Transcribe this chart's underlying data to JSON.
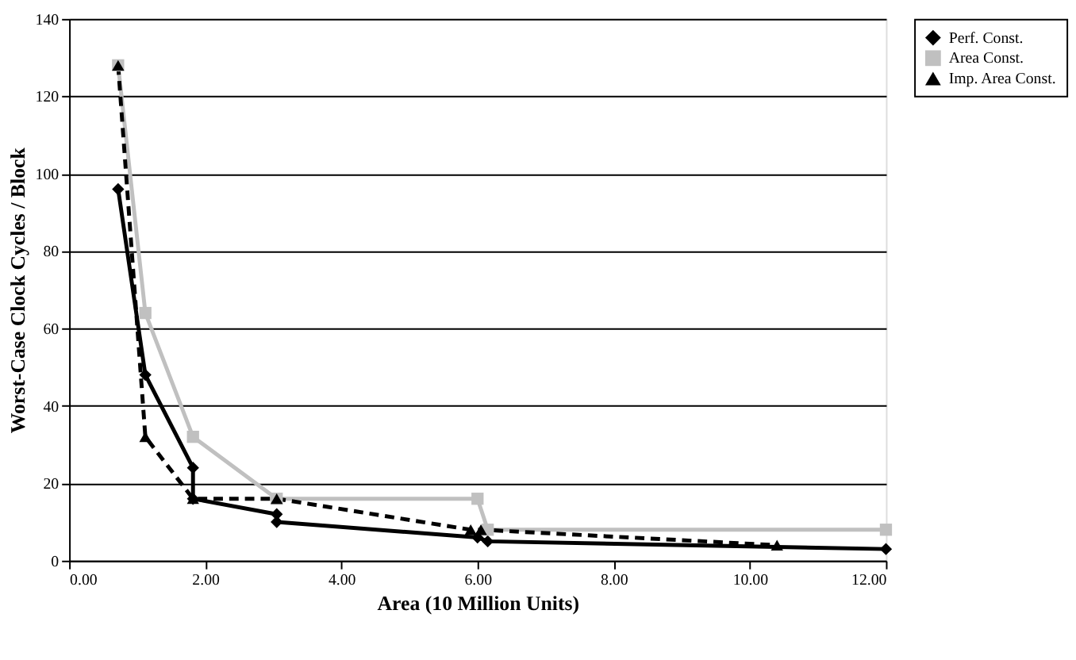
{
  "chart_data": {
    "type": "line",
    "xlabel": "Area (10 Million Units)",
    "ylabel": "Worst-Case Clock Cycles / Block",
    "xlim": [
      0,
      12
    ],
    "xticks": [
      {
        "value": 0,
        "label": "0.00"
      },
      {
        "value": 2,
        "label": "2.00"
      },
      {
        "value": 4,
        "label": "4.00"
      },
      {
        "value": 6,
        "label": "6.00"
      },
      {
        "value": 8,
        "label": "8.00"
      },
      {
        "value": 10,
        "label": "10.00"
      },
      {
        "value": 12,
        "label": "12.00"
      }
    ],
    "ylim": [
      0,
      140
    ],
    "yticks": [
      0,
      20,
      40,
      60,
      80,
      100,
      120,
      140
    ],
    "grid": "y",
    "legend": "right",
    "series": [
      {
        "name": "Perf. Const.",
        "color": "#000000",
        "marker": "diamond",
        "line_style": "solid",
        "x": [
          0.72,
          1.12,
          1.82,
          1.82,
          3.05,
          3.05,
          6.0,
          6.15,
          12
        ],
        "values": [
          96,
          48,
          24,
          16,
          12,
          10,
          6,
          5,
          3
        ]
      },
      {
        "name": "Area Const.",
        "color": "#c0c0c0",
        "marker": "square",
        "line_style": "solid",
        "x": [
          0.72,
          1.12,
          1.82,
          3.05,
          6.0,
          6.15,
          12
        ],
        "values": [
          128,
          64,
          32,
          16,
          16,
          8,
          8
        ]
      },
      {
        "name": "Imp. Area Const.",
        "color": "#000000",
        "marker": "triangle",
        "line_style": "dashed",
        "x": [
          0.72,
          1.12,
          1.82,
          3.05,
          5.9,
          6.05,
          10.4
        ],
        "values": [
          128,
          32,
          16,
          16,
          8,
          8,
          4
        ]
      }
    ]
  }
}
